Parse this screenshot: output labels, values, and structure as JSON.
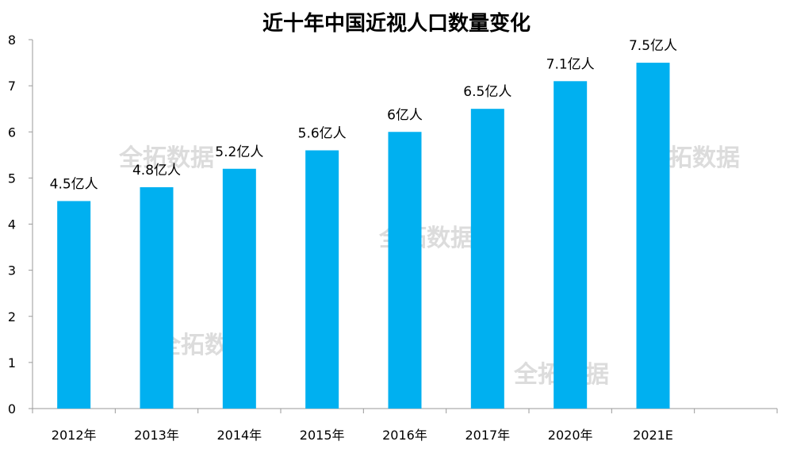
{
  "chart_data": {
    "type": "bar",
    "title": "近十年中国近视人口数量变化",
    "categories": [
      "2012年",
      "2013年",
      "2014年",
      "2015年",
      "2016年",
      "2017年",
      "2020年",
      "2021E"
    ],
    "values": [
      4.5,
      4.8,
      5.2,
      5.6,
      6,
      6.5,
      7.1,
      7.5
    ],
    "data_labels": [
      "4.5亿人",
      "4.8亿人",
      "5.2亿人",
      "5.6亿人",
      "6亿人",
      "6.5亿人",
      "7.1亿人",
      "7.5亿人"
    ],
    "ylim": [
      0,
      8
    ],
    "yticks": [
      "0",
      "1",
      "2",
      "3",
      "4",
      "5",
      "6",
      "7",
      "8"
    ],
    "xlabel": "",
    "ylabel": "",
    "grid": false,
    "legend": "none",
    "bar_color": "#00B0F0"
  },
  "watermarks": [
    "全拓数据",
    "全拓数据",
    "全拓数据",
    "全拓数据",
    "全拓数据"
  ]
}
